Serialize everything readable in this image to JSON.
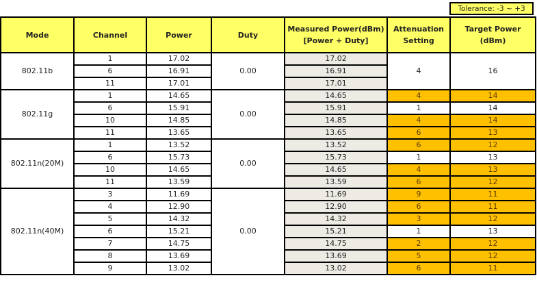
{
  "tolerance": "Tolerance:  -3 ~ +3",
  "headers": {
    "mode": "Mode",
    "channel": "Channel",
    "power": "Power",
    "duty": "Duty",
    "measured_1": "Measured Power(dBm)",
    "measured_2": "[Power + Duty]",
    "atten_1": "Attenuation",
    "atten_2": "Setting",
    "target_1": "Target Power",
    "target_2": "(dBm)"
  },
  "highlight_color": "#ffc000",
  "header_color": "#ffff66",
  "groups": [
    {
      "mode": "802.11b",
      "duty": "0.00",
      "atten": "4",
      "target": "16",
      "rows": [
        {
          "channel": "1",
          "power": "17.02",
          "measured": "17.02"
        },
        {
          "channel": "6",
          "power": "16.91",
          "measured": "16.91"
        },
        {
          "channel": "11",
          "power": "17.01",
          "measured": "17.01"
        }
      ]
    },
    {
      "mode": "802.11g",
      "duty": "0.00",
      "rows": [
        {
          "channel": "1",
          "power": "14.65",
          "measured": "14.65",
          "atten": "4",
          "target": "14",
          "highlight": true
        },
        {
          "channel": "6",
          "power": "15.91",
          "measured": "15.91",
          "atten": "1",
          "target": "14",
          "highlight": false
        },
        {
          "channel": "10",
          "power": "14.85",
          "measured": "14.85",
          "atten": "4",
          "target": "14",
          "highlight": true
        },
        {
          "channel": "11",
          "power": "13.65",
          "measured": "13.65",
          "atten": "6",
          "target": "13",
          "highlight": true
        }
      ]
    },
    {
      "mode": "802.11n(20M)",
      "duty": "0.00",
      "rows": [
        {
          "channel": "1",
          "power": "13.52",
          "measured": "13.52",
          "atten": "6",
          "target": "12",
          "highlight": true
        },
        {
          "channel": "6",
          "power": "15.73",
          "measured": "15.73",
          "atten": "1",
          "target": "13",
          "highlight": false
        },
        {
          "channel": "10",
          "power": "14.65",
          "measured": "14.65",
          "atten": "4",
          "target": "13",
          "highlight": true
        },
        {
          "channel": "11",
          "power": "13.59",
          "measured": "13.59",
          "atten": "6",
          "target": "12",
          "highlight": true
        }
      ]
    },
    {
      "mode": "802.11n(40M)",
      "duty": "0.00",
      "rows": [
        {
          "channel": "3",
          "power": "11.69",
          "measured": "11.69",
          "atten": "9",
          "target": "11",
          "highlight": true
        },
        {
          "channel": "4",
          "power": "12.90",
          "measured": "12.90",
          "atten": "6",
          "target": "11",
          "highlight": true
        },
        {
          "channel": "5",
          "power": "14.32",
          "measured": "14.32",
          "atten": "3",
          "target": "12",
          "highlight": true
        },
        {
          "channel": "6",
          "power": "15.21",
          "measured": "15.21",
          "atten": "1",
          "target": "13",
          "highlight": false
        },
        {
          "channel": "7",
          "power": "14.75",
          "measured": "14.75",
          "atten": "2",
          "target": "12",
          "highlight": true
        },
        {
          "channel": "8",
          "power": "13.69",
          "measured": "13.69",
          "atten": "5",
          "target": "12",
          "highlight": true
        },
        {
          "channel": "9",
          "power": "13.02",
          "measured": "13.02",
          "atten": "6",
          "target": "11",
          "highlight": true
        }
      ]
    }
  ]
}
